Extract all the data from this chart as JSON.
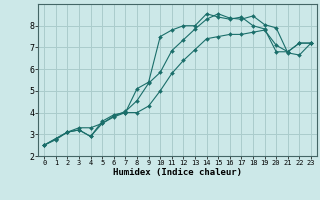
{
  "title": "",
  "xlabel": "Humidex (Indice chaleur)",
  "bg_color": "#cce8e8",
  "grid_color": "#aacccc",
  "line_color": "#1a6e6a",
  "xlim": [
    -0.5,
    23.5
  ],
  "ylim": [
    2,
    9
  ],
  "yticks": [
    2,
    3,
    4,
    5,
    6,
    7,
    8
  ],
  "xticks": [
    0,
    1,
    2,
    3,
    4,
    5,
    6,
    7,
    8,
    9,
    10,
    11,
    12,
    13,
    14,
    15,
    16,
    17,
    18,
    19,
    20,
    21,
    22,
    23
  ],
  "series": [
    {
      "x": [
        0,
        1,
        2,
        3,
        4,
        5,
        6,
        7,
        8,
        9,
        10,
        11,
        12,
        13,
        14,
        15,
        16,
        17,
        18,
        19,
        20,
        21,
        22,
        23
      ],
      "y": [
        2.5,
        2.8,
        3.1,
        3.2,
        2.9,
        3.6,
        3.9,
        4.0,
        5.1,
        5.4,
        7.5,
        7.8,
        8.0,
        8.0,
        8.55,
        8.4,
        8.3,
        8.4,
        8.0,
        7.85,
        6.8,
        6.8,
        7.2,
        7.2
      ]
    },
    {
      "x": [
        0,
        1,
        2,
        3,
        4,
        5,
        6,
        7,
        8,
        9,
        10,
        11,
        12,
        13,
        14,
        15,
        16,
        17,
        18,
        19,
        20,
        21,
        22,
        23
      ],
      "y": [
        2.5,
        2.8,
        3.1,
        3.3,
        3.3,
        3.5,
        3.8,
        4.0,
        4.0,
        4.3,
        5.0,
        5.8,
        6.4,
        6.9,
        7.4,
        7.5,
        7.6,
        7.6,
        7.7,
        7.8,
        7.1,
        6.8,
        7.2,
        7.2
      ]
    },
    {
      "x": [
        0,
        1,
        2,
        3,
        4,
        5,
        6,
        7,
        8,
        9,
        10,
        11,
        12,
        13,
        14,
        15,
        16,
        17,
        18,
        19,
        20,
        21,
        22,
        23
      ],
      "y": [
        2.5,
        2.75,
        3.1,
        3.2,
        2.9,
        3.5,
        3.85,
        4.05,
        4.55,
        5.35,
        5.85,
        6.85,
        7.35,
        7.85,
        8.3,
        8.55,
        8.35,
        8.3,
        8.45,
        8.05,
        7.9,
        6.75,
        6.65,
        7.2
      ]
    }
  ]
}
